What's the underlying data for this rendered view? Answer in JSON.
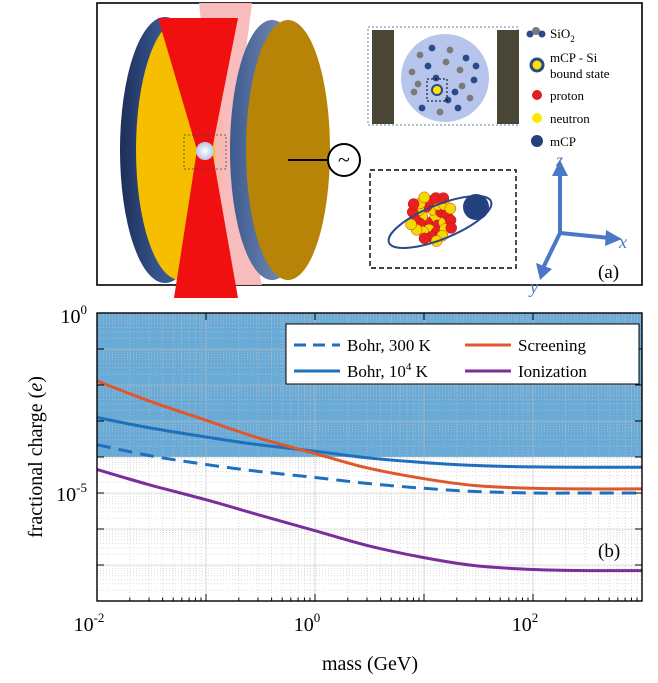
{
  "panel_a": {
    "label": "(a)",
    "legend": [
      {
        "label": "SiO",
        "sub": "2",
        "color": "#7a7a7a"
      },
      {
        "label": "mCP - Si",
        "label2": "bound state",
        "color": "#ffe300"
      },
      {
        "label": "proton",
        "color": "#e02020"
      },
      {
        "label": "neutron",
        "color": "#ffe800"
      },
      {
        "label": "mCP",
        "color": "#2a4a8a"
      }
    ],
    "axes": {
      "z": "z",
      "x": "x",
      "y": "y"
    },
    "source_symbol": "~"
  },
  "chart_data": {
    "type": "line",
    "panel_label": "(b)",
    "xlabel": "mass (GeV)",
    "ylabel_main": "fractional charge (",
    "ylabel_unit": "e",
    "ylabel_close": ")",
    "x_scale": "log",
    "y_scale": "log",
    "xlim": [
      0.01,
      1000
    ],
    "ylim": [
      1e-08,
      1
    ],
    "x_ticks": [
      {
        "value": 0.01,
        "base": "10",
        "exp": "-2"
      },
      {
        "value": 1,
        "base": "10",
        "exp": "0"
      },
      {
        "value": 100,
        "base": "10",
        "exp": "2"
      }
    ],
    "y_ticks": [
      {
        "value": 1,
        "base": "10",
        "exp": "0"
      },
      {
        "value": 1e-05,
        "base": "10",
        "exp": "-5"
      }
    ],
    "grid": true,
    "shaded_region": {
      "color": "#6aaad6",
      "above_y": 0.0001
    },
    "legend_position": "top-right",
    "series": [
      {
        "name": "Bohr, 300 K",
        "color": "#1f6fbf",
        "dash": true,
        "x": [
          0.01,
          0.03,
          0.1,
          0.3,
          1,
          3,
          10,
          30,
          100,
          300,
          1000
        ],
        "y": [
          0.00022,
          0.00011,
          6.2e-05,
          4e-05,
          2.7e-05,
          1.85e-05,
          1.35e-05,
          1.1e-05,
          1e-05,
          1e-05,
          1e-05
        ]
      },
      {
        "name": "Bohr, 10⁴ K",
        "label_base": "Bohr, 10",
        "label_exp": "4",
        "label_tail": " K",
        "color": "#1f6fbf",
        "dash": false,
        "x": [
          0.01,
          0.03,
          0.1,
          0.3,
          1,
          3,
          10,
          30,
          100,
          300,
          1000
        ],
        "y": [
          0.00125,
          0.00065,
          0.00036,
          0.00022,
          0.000145,
          9.5e-05,
          7e-05,
          5.8e-05,
          5.3e-05,
          5.2e-05,
          5.2e-05
        ]
      },
      {
        "name": "Screening",
        "color": "#e0582a",
        "dash": false,
        "x": [
          0.01,
          0.03,
          0.1,
          0.3,
          1,
          3,
          10,
          30,
          100,
          300,
          1000
        ],
        "y": [
          0.013,
          0.0036,
          0.00105,
          0.00034,
          0.000125,
          5e-05,
          2.5e-05,
          1.6e-05,
          1.35e-05,
          1.3e-05,
          1.3e-05
        ]
      },
      {
        "name": "Ionization",
        "color": "#7a2e9a",
        "dash": false,
        "x": [
          0.01,
          0.03,
          0.1,
          0.3,
          1,
          3,
          10,
          30,
          100,
          300,
          1000
        ],
        "y": [
          4.5e-05,
          1.7e-05,
          6.5e-06,
          2.5e-06,
          9e-07,
          3.5e-07,
          1.6e-07,
          9.5e-08,
          7.5e-08,
          7e-08,
          7e-08
        ]
      }
    ]
  }
}
